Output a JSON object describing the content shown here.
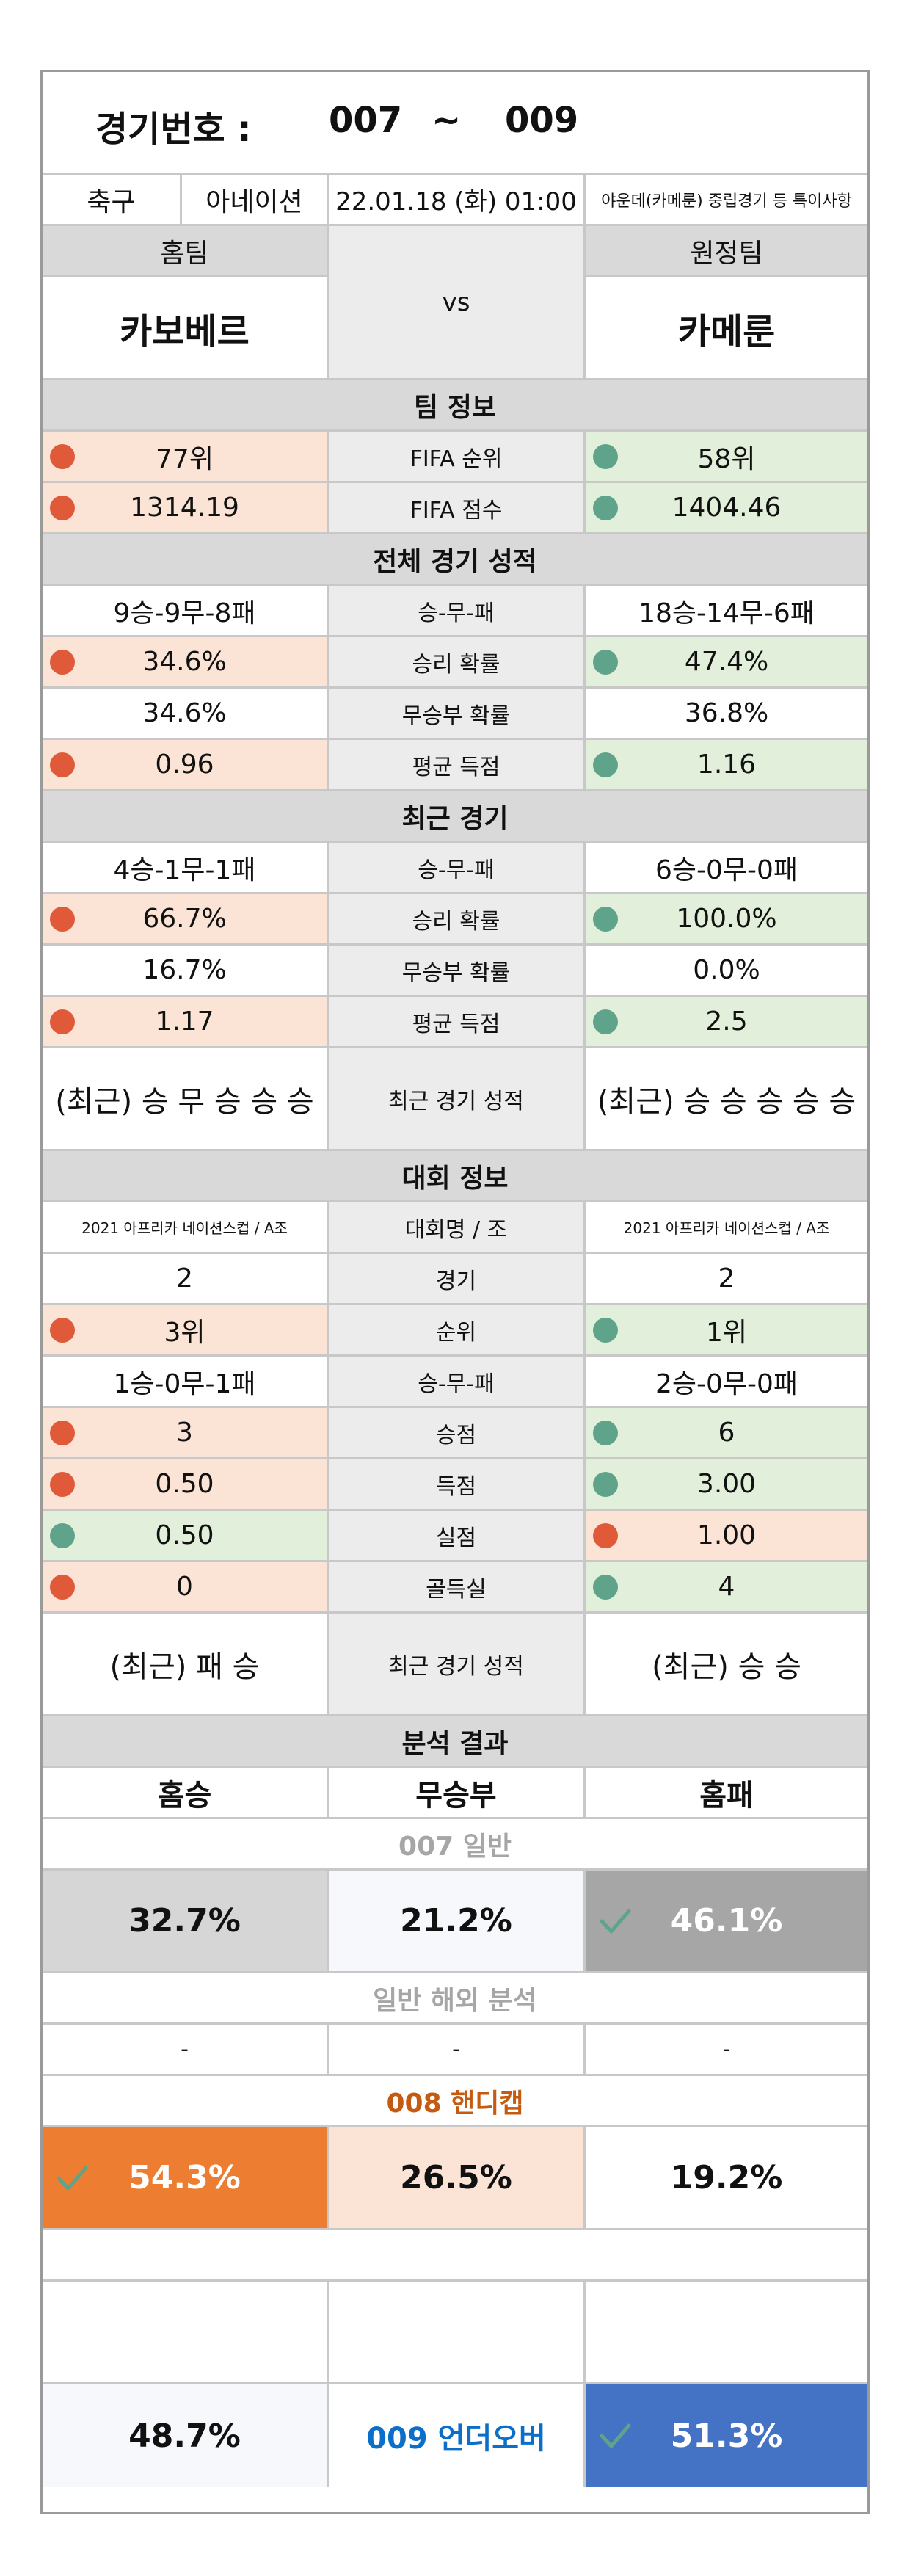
{
  "header": {
    "label": "경기번호 :",
    "from": "007",
    "sep": "~",
    "to": "009"
  },
  "info": {
    "sport": "축구",
    "league": "아네이션",
    "datetime": "22.01.18 (화) 01:00",
    "note": "야운데(카메룬) 중립경기 등 특이사항"
  },
  "teams": {
    "home_label": "홈팀",
    "away_label": "원정팀",
    "home": "카보베르",
    "vs": "vs",
    "away": "카메룬"
  },
  "team_info": {
    "section": "팀 정보",
    "rows": [
      {
        "home": "77위",
        "label": "FIFA 순위",
        "away": "58위"
      },
      {
        "home": "1314.19",
        "label": "FIFA 점수",
        "away": "1404.46"
      }
    ]
  },
  "overall": {
    "section": "전체 경기 성적",
    "rows": [
      {
        "home": "9승-9무-8패",
        "label": "승-무-패",
        "away": "18승-14무-6패"
      },
      {
        "home": "34.6%",
        "label": "승리 확률",
        "away": "47.4%"
      },
      {
        "home": "34.6%",
        "label": "무승부 확률",
        "away": "36.8%"
      },
      {
        "home": "0.96",
        "label": "평균 득점",
        "away": "1.16"
      }
    ]
  },
  "recent": {
    "section": "최근 경기",
    "rows": [
      {
        "home": "4승-1무-1패",
        "label": "승-무-패",
        "away": "6승-0무-0패"
      },
      {
        "home": "66.7%",
        "label": "승리 확률",
        "away": "100.0%"
      },
      {
        "home": "16.7%",
        "label": "무승부 확률",
        "away": "0.0%"
      },
      {
        "home": "1.17",
        "label": "평균 득점",
        "away": "2.5"
      }
    ],
    "form": {
      "home": "(최근) 승 무 승 승 승",
      "label": "최근 경기 성적",
      "away": "(최근) 승 승 승 승 승"
    }
  },
  "tournament": {
    "section": "대회 정보",
    "rows": [
      {
        "home": "2021 아프리카 네이션스컵 / A조",
        "label": "대회명 / 조",
        "away": "2021 아프리카 네이션스컵 / A조"
      },
      {
        "home": "2",
        "label": "경기",
        "away": "2"
      },
      {
        "home": "3위",
        "label": "순위",
        "away": "1위"
      },
      {
        "home": "1승-0무-1패",
        "label": "승-무-패",
        "away": "2승-0무-0패"
      },
      {
        "home": "3",
        "label": "승점",
        "away": "6"
      },
      {
        "home": "0.50",
        "label": "득점",
        "away": "3.00"
      },
      {
        "home": "0.50",
        "label": "실점",
        "away": "1.00"
      },
      {
        "home": "0",
        "label": "골득실",
        "away": "4"
      }
    ],
    "form": {
      "home": "(최근) 패 승",
      "label": "최근 경기 성적",
      "away": "(최근) 승 승"
    }
  },
  "analysis": {
    "section": "분석 결과",
    "col_home": "홈승",
    "col_draw": "무승부",
    "col_away": "홈패",
    "general_title": "007 일반",
    "general": {
      "home": "32.7%",
      "draw": "21.2%",
      "away": "46.1%"
    },
    "overseas_title": "일반 해외 분석",
    "overseas": {
      "home": "-",
      "draw": "-",
      "away": "-"
    },
    "handicap_title": "008 핸디캡",
    "handicap": {
      "home": "54.3%",
      "draw": "26.5%",
      "away": "19.2%"
    },
    "underover": {
      "left": "48.7%",
      "title": "009 언더오버",
      "right": "51.3%"
    }
  },
  "colors": {
    "weaker": "#e05a3a",
    "stronger": "#5fa48a",
    "orange": "#ed7d31",
    "blue": "#4472c4"
  }
}
